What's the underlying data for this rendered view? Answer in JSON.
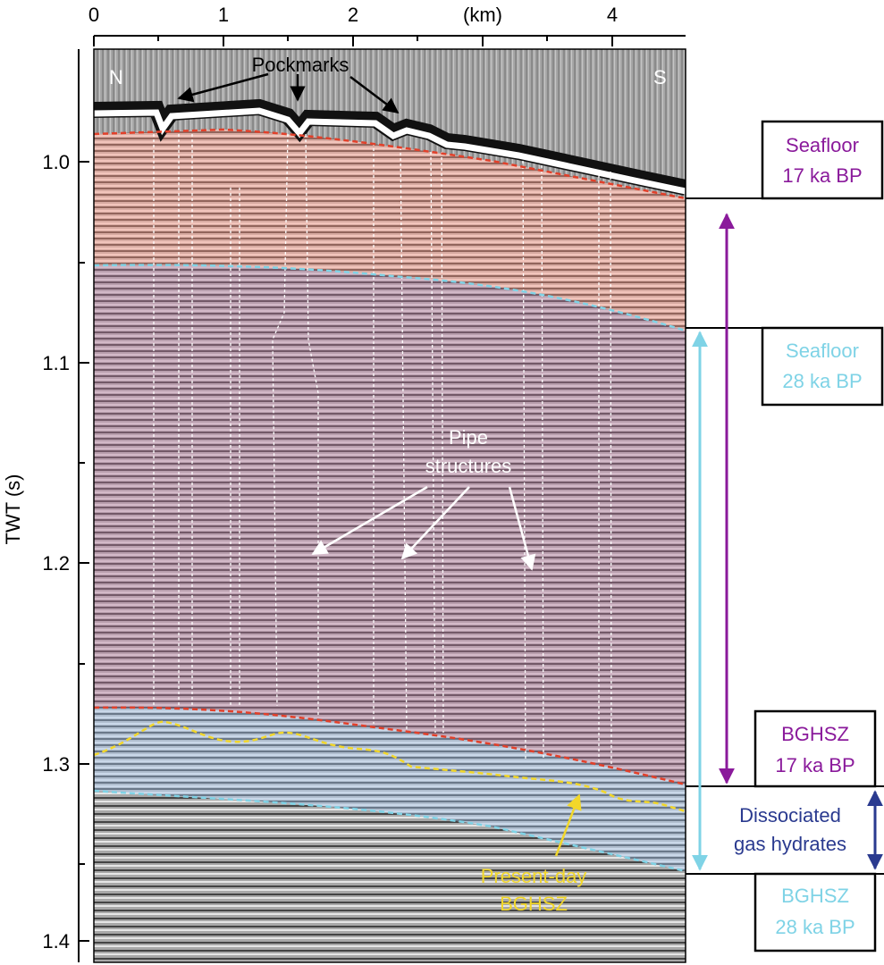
{
  "axes": {
    "x_label": "(km)",
    "x_ticks": [
      "0",
      "1",
      "2",
      "4"
    ],
    "y_label": "TWT (s)",
    "y_ticks": [
      "1.0",
      "1.1",
      "1.2",
      "1.3",
      "1.4"
    ]
  },
  "profile": {
    "left_end": "N",
    "right_end": "S"
  },
  "annotations": {
    "pockmarks": "Pockmarks",
    "pipes_line1": "Pipe",
    "pipes_line2": "structures",
    "present_line1": "Present-day",
    "present_line2": "BGHSZ"
  },
  "boxes": {
    "seafloor17": [
      "Seafloor",
      "17 ka BP"
    ],
    "seafloor28": [
      "Seafloor",
      "28 ka BP"
    ],
    "bghsz17": [
      "BGHSZ",
      "17 ka BP"
    ],
    "bghsz28": [
      "BGHSZ",
      "28 ka BP"
    ]
  },
  "dissociated": [
    "Dissociated",
    "gas hydrates"
  ],
  "colors": {
    "purple": "#8a1a9b",
    "cyan": "#7fd3e6",
    "navy": "#2a3a8f",
    "red": "#e2402a",
    "yellow": "#f2d72a",
    "upper_unit": "#f3a08f",
    "middle_unit": "#b98aa6",
    "lower_unit": "#a9c2e2"
  }
}
